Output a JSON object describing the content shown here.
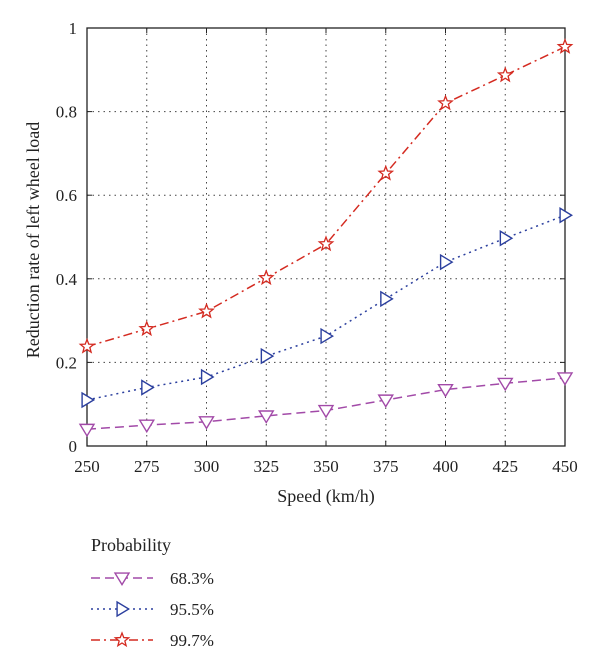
{
  "chart_data": {
    "type": "line",
    "title": "",
    "xlabel": "Speed (km/h)",
    "ylabel": "Reduction rate of left wheel load",
    "x": [
      250,
      275,
      300,
      325,
      350,
      375,
      400,
      425,
      450
    ],
    "xlim": [
      250,
      450
    ],
    "ylim": [
      0,
      1
    ],
    "x_ticks": [
      "250",
      "275",
      "300",
      "325",
      "350",
      "375",
      "400",
      "425",
      "450"
    ],
    "y_ticks": [
      "0",
      "0.2",
      "0.4",
      "0.6",
      "0.8",
      "1"
    ],
    "grid": true,
    "legend_title": "Probability",
    "legend_placement": "below",
    "series": [
      {
        "name": "68.3%",
        "color": "#a24aa8",
        "marker": "triangle-down",
        "dash": "dashed",
        "values": [
          0.04,
          0.05,
          0.058,
          0.072,
          0.085,
          0.11,
          0.135,
          0.15,
          0.163
        ]
      },
      {
        "name": "95.5%",
        "color": "#2b3f9e",
        "marker": "triangle-right",
        "dash": "dotted",
        "values": [
          0.11,
          0.14,
          0.165,
          0.215,
          0.263,
          0.352,
          0.44,
          0.497,
          0.552
        ]
      },
      {
        "name": "99.7%",
        "color": "#d42a20",
        "marker": "star",
        "dash": "dash-dot",
        "values": [
          0.238,
          0.28,
          0.322,
          0.402,
          0.483,
          0.652,
          0.82,
          0.887,
          0.955
        ]
      }
    ]
  }
}
